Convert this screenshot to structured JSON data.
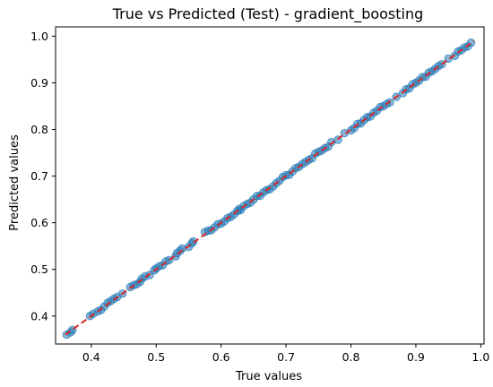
{
  "chart_data": {
    "type": "scatter",
    "title": "True vs Predicted (Test) - gradient_boosting",
    "xlabel": "True values",
    "ylabel": "Predicted values",
    "xlim": [
      0.345,
      1.005
    ],
    "ylim": [
      0.34,
      1.02
    ],
    "xticks": [
      0.4,
      0.5,
      0.6,
      0.7,
      0.8,
      0.9,
      1.0
    ],
    "yticks": [
      0.4,
      0.5,
      0.6,
      0.7,
      0.8,
      0.9,
      1.0
    ],
    "xtick_labels": [
      "0.4",
      "0.5",
      "0.6",
      "0.7",
      "0.8",
      "0.9",
      "1.0"
    ],
    "ytick_labels": [
      "0.4",
      "0.5",
      "0.6",
      "0.7",
      "0.8",
      "0.9",
      "1.0"
    ],
    "grid": false,
    "reference_line": {
      "x": [
        0.36,
        0.99
      ],
      "y": [
        0.36,
        0.99
      ],
      "style": "dashed",
      "color": "#d62728"
    },
    "point_color": "#1f77b4",
    "series": [
      {
        "x": [
          0.362,
          0.368,
          0.371,
          0.398,
          0.403,
          0.41,
          0.415,
          0.42,
          0.425,
          0.43,
          0.435,
          0.44,
          0.448,
          0.46,
          0.465,
          0.47,
          0.475,
          0.478,
          0.483,
          0.49,
          0.497,
          0.5,
          0.505,
          0.51,
          0.515,
          0.52,
          0.53,
          0.532,
          0.537,
          0.54,
          0.55,
          0.555,
          0.557,
          0.575,
          0.58,
          0.585,
          0.59,
          0.595,
          0.6,
          0.605,
          0.61,
          0.615,
          0.62,
          0.625,
          0.628,
          0.63,
          0.635,
          0.64,
          0.645,
          0.65,
          0.655,
          0.66,
          0.665,
          0.67,
          0.675,
          0.68,
          0.685,
          0.69,
          0.695,
          0.7,
          0.705,
          0.71,
          0.715,
          0.72,
          0.725,
          0.73,
          0.735,
          0.74,
          0.745,
          0.75,
          0.755,
          0.76,
          0.765,
          0.77,
          0.78,
          0.79,
          0.8,
          0.805,
          0.81,
          0.815,
          0.82,
          0.825,
          0.83,
          0.835,
          0.84,
          0.845,
          0.85,
          0.855,
          0.86,
          0.87,
          0.88,
          0.885,
          0.89,
          0.895,
          0.9,
          0.905,
          0.91,
          0.915,
          0.92,
          0.925,
          0.93,
          0.935,
          0.94,
          0.95,
          0.96,
          0.965,
          0.97,
          0.975,
          0.98,
          0.985
        ],
        "y": [
          0.36,
          0.365,
          0.37,
          0.4,
          0.405,
          0.41,
          0.413,
          0.42,
          0.428,
          0.432,
          0.437,
          0.441,
          0.448,
          0.462,
          0.466,
          0.468,
          0.473,
          0.48,
          0.485,
          0.488,
          0.498,
          0.502,
          0.507,
          0.509,
          0.517,
          0.52,
          0.528,
          0.535,
          0.54,
          0.545,
          0.548,
          0.556,
          0.56,
          0.58,
          0.583,
          0.584,
          0.59,
          0.597,
          0.598,
          0.603,
          0.61,
          0.613,
          0.618,
          0.625,
          0.63,
          0.627,
          0.636,
          0.64,
          0.643,
          0.65,
          0.657,
          0.658,
          0.665,
          0.67,
          0.672,
          0.678,
          0.685,
          0.69,
          0.698,
          0.702,
          0.703,
          0.71,
          0.717,
          0.72,
          0.726,
          0.73,
          0.735,
          0.738,
          0.748,
          0.752,
          0.755,
          0.76,
          0.763,
          0.773,
          0.778,
          0.792,
          0.798,
          0.803,
          0.812,
          0.813,
          0.82,
          0.826,
          0.828,
          0.836,
          0.84,
          0.848,
          0.85,
          0.855,
          0.858,
          0.87,
          0.878,
          0.886,
          0.888,
          0.897,
          0.9,
          0.905,
          0.912,
          0.913,
          0.922,
          0.925,
          0.93,
          0.936,
          0.94,
          0.952,
          0.958,
          0.967,
          0.97,
          0.976,
          0.978,
          0.986
        ]
      }
    ]
  }
}
